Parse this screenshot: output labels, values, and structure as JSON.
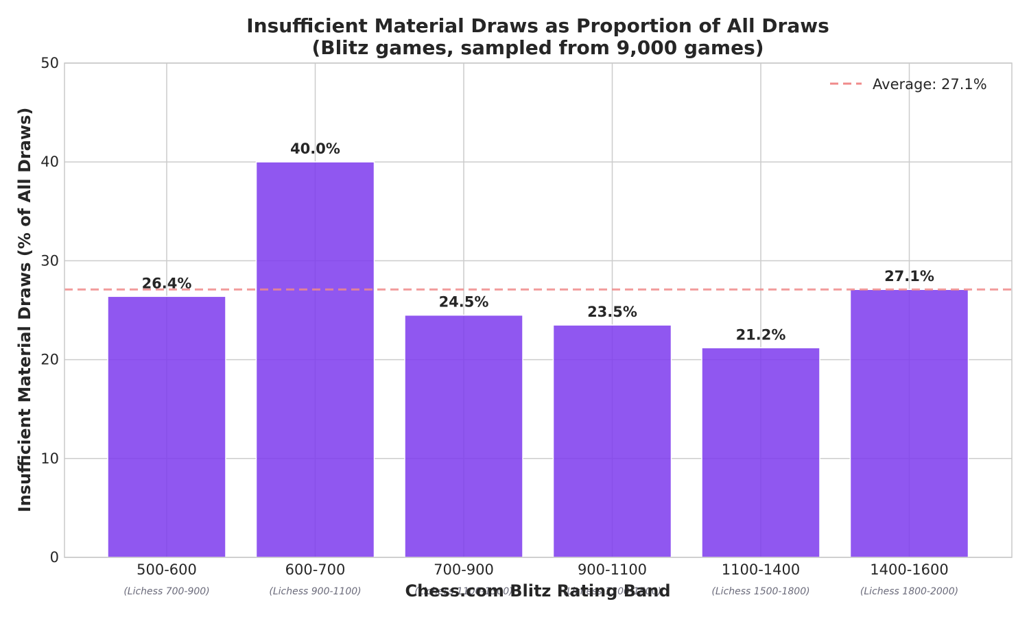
{
  "chart_data": {
    "type": "bar",
    "title_lines": [
      "Insufficient Material Draws as Proportion of All Draws",
      "(Blitz games, sampled from 9,000 games)"
    ],
    "xlabel": "Chess.com Blitz Rating Band",
    "ylabel": "Insufficient Material Draws (% of All Draws)",
    "categories": [
      "500-600",
      "600-700",
      "700-900",
      "900-1100",
      "1100-1400",
      "1400-1600"
    ],
    "sub_categories": [
      "(Lichess 700-900)",
      "(Lichess 900-1100)",
      "(Lichess 1100-1300)",
      "(Lichess 1300-1500)",
      "(Lichess 1500-1800)",
      "(Lichess 1800-2000)"
    ],
    "values": [
      26.4,
      40.0,
      24.5,
      23.5,
      21.2,
      27.1
    ],
    "value_labels": [
      "26.4%",
      "40.0%",
      "24.5%",
      "23.5%",
      "21.2%",
      "27.1%"
    ],
    "ylim": [
      0,
      50
    ],
    "yticks": [
      0,
      10,
      20,
      30,
      40,
      50
    ],
    "grid": true,
    "legend_position": "top-right",
    "average": {
      "value": 27.1,
      "label": "Average: 27.1%"
    },
    "colors": {
      "bar": "#7c3aed",
      "bar_edge": "#ffffff",
      "average_line": "#f08a8a",
      "grid": "#cccccc",
      "axes": "#c8c8c8"
    }
  }
}
